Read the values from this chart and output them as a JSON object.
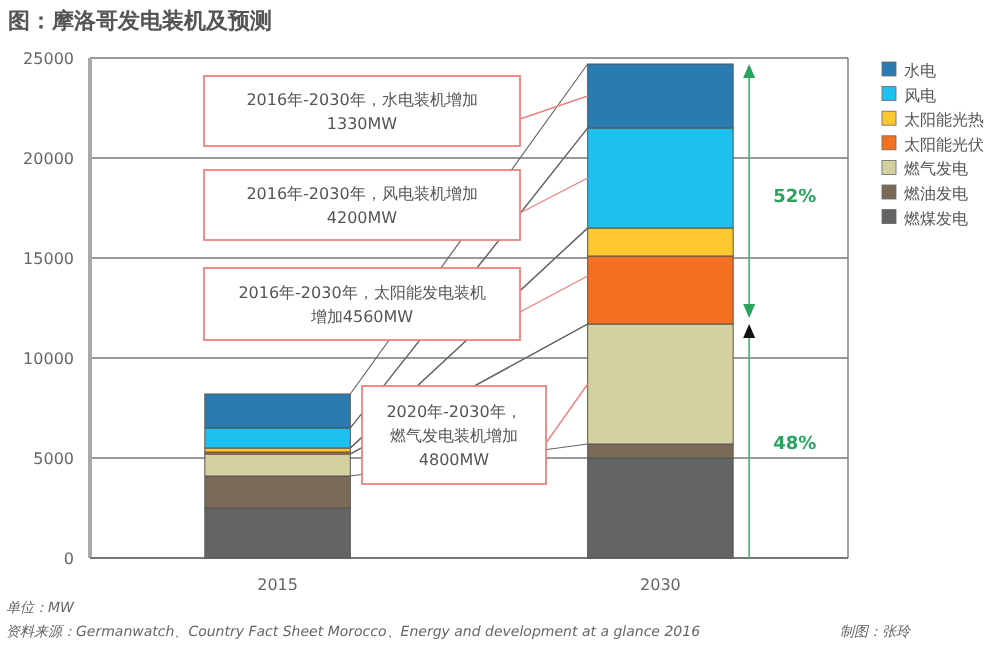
{
  "chart_data": {
    "type": "bar",
    "title": "图：摩洛哥发电装机及预测",
    "categories": [
      "2015",
      "2030"
    ],
    "stacked": true,
    "series": [
      {
        "name": "燃煤发电",
        "color": "#636466",
        "values": [
          2500,
          5000
        ]
      },
      {
        "name": "燃油发电",
        "color": "#7b6a55",
        "values": [
          1600,
          700
        ]
      },
      {
        "name": "燃气发电",
        "color": "#d4d0a0",
        "values": [
          1100,
          6000
        ]
      },
      {
        "name": "太阳能光伏",
        "color": "#f37021",
        "values": [
          100,
          3400
        ]
      },
      {
        "name": "太阳能光热",
        "color": "#fdc82f",
        "values": [
          200,
          1400
        ]
      },
      {
        "name": "风电",
        "color": "#1ec0ef",
        "values": [
          1000,
          5000
        ]
      },
      {
        "name": "水电",
        "color": "#2b7bb3",
        "values": [
          1700,
          3200
        ]
      }
    ],
    "ylim": [
      0,
      25000
    ],
    "yticks": [
      0,
      5000,
      10000,
      15000,
      20000,
      25000
    ],
    "grid": "y",
    "legend": "right",
    "annotations": [
      "2016年-2030年，水电装机增加1330MW",
      "2016年-2030年，风电装机增加4200MW",
      "2016年-2030年，太阳能发电装机增加4560MW",
      "2020年-2030年，燃气发电装机增加4800MW",
      "52%",
      "48%",
      "单位：MW",
      "资料来源：Germanwatch、Country Fact Sheet Morocco、Energy and development at a glance 2016",
      "制图：张玲"
    ]
  }
}
